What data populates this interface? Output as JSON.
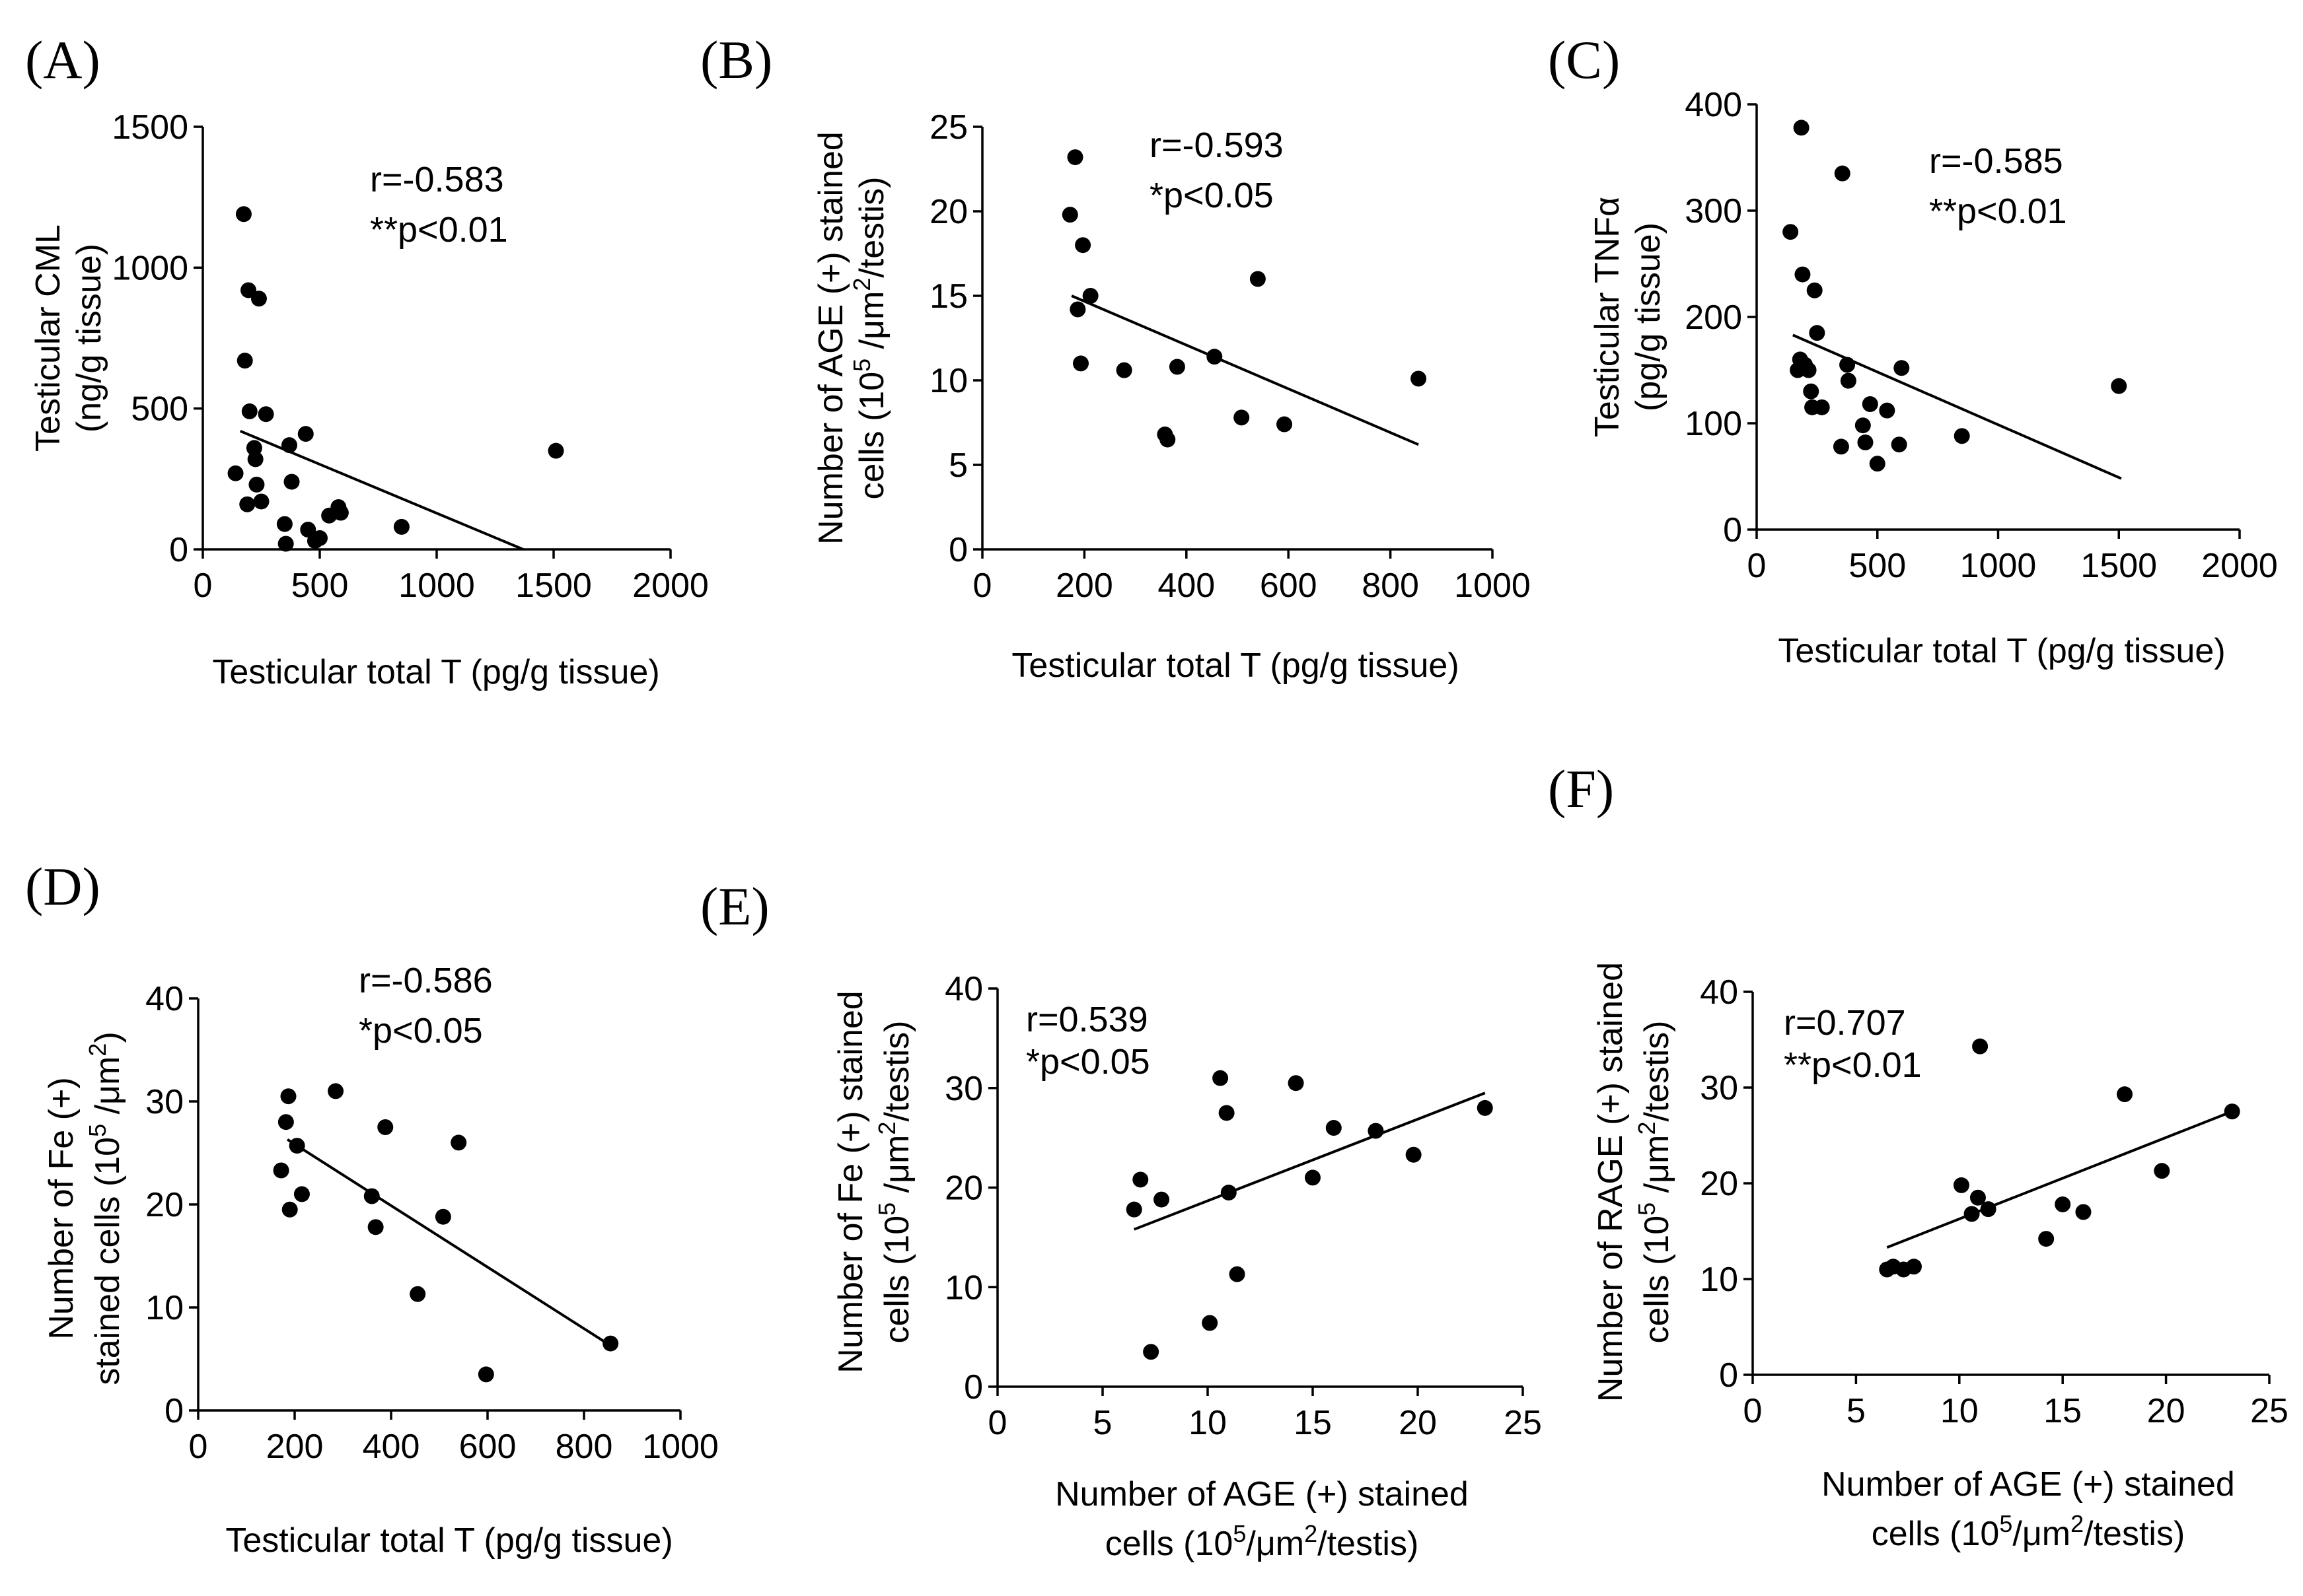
{
  "chart_data": [
    {
      "panel_label": "(A)",
      "type": "scatter",
      "xlabel": [
        {
          "t": "Testicular total T (pg/g tissue)"
        }
      ],
      "ylabel": [
        [
          {
            "t": "Testicular CML"
          }
        ],
        [
          {
            "t": "(ng/g tissue)"
          }
        ]
      ],
      "xlim": [
        0,
        2000
      ],
      "ylim": [
        0,
        1500
      ],
      "xticks": [
        0,
        500,
        1000,
        1500,
        2000
      ],
      "yticks": [
        0,
        500,
        1000,
        1500
      ],
      "grid": false,
      "annotation": [
        "r=-0.583",
        "**p<0.01"
      ],
      "fit_line": {
        "x": [
          160,
          1370
        ],
        "y": [
          420,
          0
        ]
      },
      "points": [
        [
          140,
          270
        ],
        [
          175,
          1190
        ],
        [
          190,
          160
        ],
        [
          195,
          920
        ],
        [
          200,
          490
        ],
        [
          220,
          360
        ],
        [
          225,
          320
        ],
        [
          230,
          230
        ],
        [
          240,
          890
        ],
        [
          250,
          170
        ],
        [
          270,
          480
        ],
        [
          350,
          90
        ],
        [
          355,
          20
        ],
        [
          370,
          370
        ],
        [
          380,
          240
        ],
        [
          440,
          410
        ],
        [
          450,
          70
        ],
        [
          480,
          30
        ],
        [
          500,
          40
        ],
        [
          540,
          120
        ],
        [
          580,
          150
        ],
        [
          590,
          130
        ],
        [
          850,
          80
        ],
        [
          1510,
          350
        ],
        [
          180,
          670
        ]
      ]
    },
    {
      "panel_label": "(B)",
      "type": "scatter",
      "xlabel": [
        {
          "t": "Testicular total T  (pg/g tissue)"
        }
      ],
      "ylabel": [
        [
          {
            "t": "Number of AGE (+) stained"
          }
        ],
        [
          {
            "t": "cells  (10"
          },
          {
            "t": "5",
            "sup": true
          },
          {
            "t": " /μm"
          },
          {
            "t": "2",
            "sup": true
          },
          {
            "t": "/testis)"
          }
        ]
      ],
      "xlim": [
        0,
        1000
      ],
      "ylim": [
        0,
        25
      ],
      "xticks": [
        0,
        200,
        400,
        600,
        800,
        1000
      ],
      "yticks": [
        0,
        5,
        10,
        15,
        20,
        25
      ],
      "grid": false,
      "annotation": [
        "r=-0.593",
        "*p<0.05"
      ],
      "fit_line": {
        "x": [
          175,
          855
        ],
        "y": [
          15.0,
          6.2
        ]
      },
      "points": [
        [
          172,
          19.8
        ],
        [
          182,
          23.2
        ],
        [
          187,
          14.2
        ],
        [
          193,
          11.0
        ],
        [
          197,
          18.0
        ],
        [
          212,
          15.0
        ],
        [
          278,
          10.6
        ],
        [
          358,
          6.8
        ],
        [
          363,
          6.5
        ],
        [
          382,
          10.8
        ],
        [
          455,
          11.4
        ],
        [
          508,
          7.8
        ],
        [
          540,
          16.0
        ],
        [
          592,
          7.4
        ],
        [
          855,
          10.1
        ]
      ]
    },
    {
      "panel_label": "(C)",
      "type": "scatter",
      "xlabel": [
        {
          "t": "Testicular total T (pg/g tissue)"
        }
      ],
      "ylabel": [
        [
          {
            "t": "Testicular TNFα"
          }
        ],
        [
          {
            "t": "(pg/g tissue)"
          }
        ]
      ],
      "xlim": [
        0,
        2000
      ],
      "ylim": [
        0,
        400
      ],
      "xticks": [
        0,
        500,
        1000,
        1500,
        2000
      ],
      "yticks": [
        0,
        100,
        200,
        300,
        400
      ],
      "grid": false,
      "annotation": [
        "r=-0.585",
        "**p<0.01"
      ],
      "fit_line": {
        "x": [
          150,
          1510
        ],
        "y": [
          183,
          48
        ]
      },
      "points": [
        [
          140,
          280
        ],
        [
          170,
          150
        ],
        [
          180,
          160
        ],
        [
          185,
          378
        ],
        [
          190,
          240
        ],
        [
          200,
          155
        ],
        [
          215,
          150
        ],
        [
          225,
          130
        ],
        [
          230,
          115
        ],
        [
          240,
          225
        ],
        [
          250,
          185
        ],
        [
          270,
          115
        ],
        [
          350,
          78
        ],
        [
          355,
          335
        ],
        [
          375,
          155
        ],
        [
          380,
          140
        ],
        [
          440,
          98
        ],
        [
          450,
          82
        ],
        [
          470,
          118
        ],
        [
          500,
          62
        ],
        [
          540,
          112
        ],
        [
          590,
          80
        ],
        [
          600,
          152
        ],
        [
          850,
          88
        ],
        [
          1500,
          135
        ]
      ]
    },
    {
      "panel_label": "(D)",
      "type": "scatter",
      "xlabel": [
        {
          "t": "Testicular total T  (pg/g tissue)"
        }
      ],
      "ylabel": [
        [
          {
            "t": "Number of Fe (+)"
          }
        ],
        [
          {
            "t": "stained cells  (10"
          },
          {
            "t": "5",
            "sup": true
          },
          {
            "t": " /μm"
          },
          {
            "t": "2",
            "sup": true
          },
          {
            "t": ")"
          }
        ]
      ],
      "xlim": [
        0,
        1000
      ],
      "ylim": [
        0,
        40
      ],
      "xticks": [
        0,
        200,
        400,
        600,
        800,
        1000
      ],
      "yticks": [
        0,
        10,
        20,
        30,
        40
      ],
      "grid": false,
      "annotation": [
        "r=-0.586",
        "*p<0.05"
      ],
      "fit_line": {
        "x": [
          185,
          855
        ],
        "y": [
          26.3,
          6.3
        ]
      },
      "points": [
        [
          172,
          23.3
        ],
        [
          182,
          28.0
        ],
        [
          187,
          30.5
        ],
        [
          190,
          19.5
        ],
        [
          205,
          25.7
        ],
        [
          215,
          21.0
        ],
        [
          285,
          31.0
        ],
        [
          360,
          20.8
        ],
        [
          368,
          17.8
        ],
        [
          388,
          27.5
        ],
        [
          455,
          11.3
        ],
        [
          508,
          18.8
        ],
        [
          540,
          26.0
        ],
        [
          597,
          3.5
        ],
        [
          855,
          6.5
        ]
      ]
    },
    {
      "panel_label": "(E)",
      "type": "scatter",
      "xlabel": [
        {
          "t": "Number of AGE (+) stained"
        },
        {
          "t": "cells (10"
        },
        {
          "t": "5",
          "sup": true
        },
        {
          "t": "/μm"
        },
        {
          "t": "2",
          "sup": true
        },
        {
          "t": "/testis)"
        }
      ],
      "ylabel": [
        [
          {
            "t": "Number of Fe (+) stained"
          }
        ],
        [
          {
            "t": "cells  (10"
          },
          {
            "t": "5",
            "sup": true
          },
          {
            "t": " /μm"
          },
          {
            "t": "2",
            "sup": true
          },
          {
            "t": "/testis)"
          }
        ]
      ],
      "xlim": [
        0,
        25
      ],
      "ylim": [
        0,
        40
      ],
      "xticks": [
        0,
        5,
        10,
        15,
        20,
        25
      ],
      "yticks": [
        0,
        10,
        20,
        30,
        40
      ],
      "grid": false,
      "annotation": [
        "r=0.539",
        "*p<0.05"
      ],
      "fit_line": {
        "x": [
          6.5,
          23.2
        ],
        "y": [
          15.8,
          29.5
        ]
      },
      "points": [
        [
          6.5,
          17.8
        ],
        [
          6.8,
          20.8
        ],
        [
          7.3,
          3.5
        ],
        [
          7.8,
          18.8
        ],
        [
          10.1,
          6.4
        ],
        [
          10.6,
          31.0
        ],
        [
          10.9,
          27.5
        ],
        [
          11.0,
          19.5
        ],
        [
          11.4,
          11.3
        ],
        [
          14.2,
          30.5
        ],
        [
          15.0,
          21.0
        ],
        [
          16.0,
          26.0
        ],
        [
          18.0,
          25.7
        ],
        [
          19.8,
          23.3
        ],
        [
          23.2,
          28.0
        ]
      ]
    },
    {
      "panel_label": "(F)",
      "type": "scatter",
      "xlabel": [
        {
          "t": "Number of AGE (+) stained"
        },
        {
          "t": "cells (10"
        },
        {
          "t": "5",
          "sup": true
        },
        {
          "t": "/μm"
        },
        {
          "t": "2",
          "sup": true
        },
        {
          "t": "/testis)"
        }
      ],
      "ylabel": [
        [
          {
            "t": "Number of RAGE (+) stained"
          }
        ],
        [
          {
            "t": "cells  (10"
          },
          {
            "t": "5",
            "sup": true
          },
          {
            "t": " /μm"
          },
          {
            "t": "2",
            "sup": true
          },
          {
            "t": "/testis)"
          }
        ]
      ],
      "xlim": [
        0,
        25
      ],
      "ylim": [
        0,
        40
      ],
      "xticks": [
        0,
        5,
        10,
        15,
        20,
        25
      ],
      "yticks": [
        0,
        10,
        20,
        30,
        40
      ],
      "grid": false,
      "annotation": [
        "r=0.707",
        "**p<0.01"
      ],
      "fit_line": {
        "x": [
          6.5,
          23.2
        ],
        "y": [
          13.3,
          27.5
        ]
      },
      "points": [
        [
          6.5,
          11.0
        ],
        [
          6.8,
          11.3
        ],
        [
          7.3,
          11.0
        ],
        [
          7.8,
          11.3
        ],
        [
          10.1,
          19.8
        ],
        [
          10.6,
          16.8
        ],
        [
          10.9,
          18.5
        ],
        [
          11.0,
          34.3
        ],
        [
          11.4,
          17.3
        ],
        [
          14.2,
          14.2
        ],
        [
          15.0,
          17.8
        ],
        [
          16.0,
          17.0
        ],
        [
          18.0,
          29.3
        ],
        [
          19.8,
          21.3
        ],
        [
          23.2,
          27.5
        ]
      ]
    }
  ]
}
